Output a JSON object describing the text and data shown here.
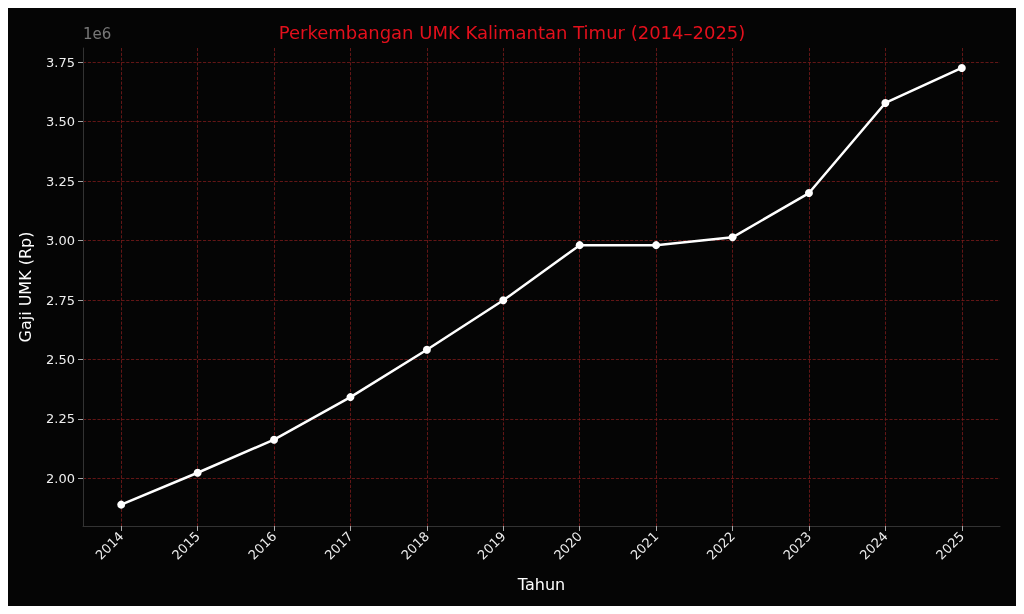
{
  "chart_data": {
    "type": "line",
    "title": "Perkembangan UMK Kalimantan Timur (2014–2025)",
    "xlabel": "Tahun",
    "ylabel": "Gaji UMK (Rp)",
    "annotations": [
      "1e6"
    ],
    "categories": [
      "2014",
      "2015",
      "2016",
      "2017",
      "2018",
      "2019",
      "2020",
      "2021",
      "2022",
      "2023",
      "2024",
      "2025"
    ],
    "series": [
      {
        "color": "#ffffff",
        "values": [
          1.89,
          2.024,
          2.163,
          2.342,
          2.541,
          2.749,
          2.981,
          2.981,
          3.014,
          3.2,
          3.579,
          3.726
        ]
      }
    ],
    "ylim": [
      1.8,
      3.81
    ],
    "yticks": [
      {
        "value": 2,
        "label": "2.00"
      },
      {
        "value": 2.25,
        "label": "2.25"
      },
      {
        "value": 2.5,
        "label": "2.50"
      },
      {
        "value": 2.75,
        "label": "2.75"
      },
      {
        "value": 3,
        "label": "3.00"
      },
      {
        "value": 3.25,
        "label": "3.25"
      },
      {
        "value": 3.5,
        "label": "3.50"
      },
      {
        "value": 3.75,
        "label": "3.75"
      }
    ],
    "grid": true,
    "marker": "circle",
    "line_style": "solid"
  }
}
